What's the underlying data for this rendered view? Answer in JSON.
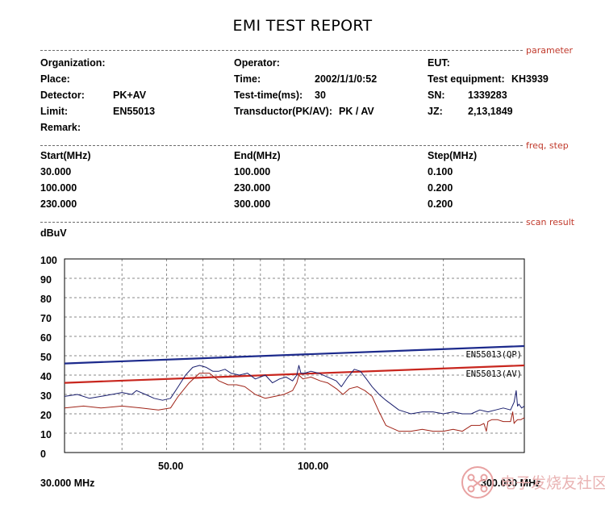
{
  "report": {
    "title": "EMI TEST REPORT"
  },
  "sections": {
    "parameter": "parameter",
    "freq_step": "freq, step",
    "scan_result": "scan result"
  },
  "parameters": {
    "organization_label": "Organization:",
    "organization_value": "",
    "operator_label": "Operator:",
    "operator_value": "",
    "eut_label": "EUT:",
    "eut_value": "",
    "place_label": "Place:",
    "place_value": "",
    "time_label": "Time:",
    "time_value": "2002/1/1/0:52",
    "equipment_label": "Test equipment:",
    "equipment_value": "KH3939",
    "detector_label": "Detector:",
    "detector_value": "PK+AV",
    "testtime_label": "Test-time(ms):",
    "testtime_value": "30",
    "sn_label": "SN:",
    "sn_value": "1339283",
    "limit_label": "Limit:",
    "limit_value": "EN55013",
    "transductor_label": "Transductor(PK/AV):",
    "transductor_value": "PK  /  AV",
    "jz_label": "JZ:",
    "jz_value": "2,13,1849",
    "remark_label": "Remark:",
    "remark_value": ""
  },
  "freq_table": {
    "headers": [
      "Start(MHz)",
      "End(MHz)",
      "Step(MHz)"
    ],
    "rows": [
      [
        "30.000",
        "100.000",
        "0.100"
      ],
      [
        "100.000",
        "230.000",
        "0.200"
      ],
      [
        "230.000",
        "300.000",
        "0.200"
      ]
    ]
  },
  "watermark": {
    "text": "电子发烧友社区"
  },
  "chart_data": {
    "type": "line",
    "ylabel": "dBuV",
    "ylim": [
      0,
      100
    ],
    "yticks": [
      "100",
      "90",
      "80",
      "70",
      "60",
      "50",
      "40",
      "30",
      "20",
      "10",
      "0"
    ],
    "xscale": "log",
    "xlim": [
      30,
      300
    ],
    "xtick_labels": [
      "50.00",
      "100.00"
    ],
    "x_start_label": "30.000 MHz",
    "x_end_label": "300.000 MHz",
    "grid": true,
    "colors": {
      "qp": "#1c2a8c",
      "av": "#c8261e",
      "measured_pk": "#1a1f6e",
      "measured_av": "#a02418"
    },
    "limit_lines": [
      {
        "name": "EN55013(QP)",
        "x": [
          30,
          300
        ],
        "y": [
          46,
          55
        ],
        "color": "#1c2a8c"
      },
      {
        "name": "EN55013(AV)",
        "x": [
          30,
          300
        ],
        "y": [
          36,
          45
        ],
        "color": "#c8261e"
      }
    ],
    "series": [
      {
        "color": "#1a1f6e",
        "x": [
          30,
          32,
          34,
          36,
          38,
          40,
          42,
          43,
          45,
          47,
          49,
          51,
          53,
          55,
          57,
          59,
          61,
          63,
          65,
          67,
          69,
          72,
          75,
          78,
          80,
          82,
          85,
          88,
          91,
          94,
          96,
          97,
          98,
          100,
          103,
          107,
          112,
          117,
          120,
          124,
          128,
          132,
          136,
          140,
          145,
          150,
          160,
          170,
          180,
          190,
          200,
          210,
          220,
          230,
          240,
          250,
          260,
          270,
          280,
          285,
          288,
          290,
          292,
          296,
          300
        ],
        "y": [
          29,
          30,
          28,
          29,
          30,
          31,
          30,
          32,
          30,
          28,
          27,
          28,
          34,
          40,
          44,
          45,
          44,
          42,
          42,
          43,
          41,
          40,
          41,
          38,
          39,
          40,
          36,
          38,
          39,
          37,
          40,
          45,
          41,
          41,
          42,
          41,
          39,
          37,
          34,
          39,
          43,
          42,
          38,
          34,
          30,
          27,
          22,
          20,
          21,
          21,
          20,
          21,
          20,
          20,
          22,
          21,
          22,
          23,
          22,
          26,
          32,
          24,
          25,
          23,
          24
        ]
      },
      {
        "color": "#a02418",
        "x": [
          30,
          33,
          36,
          40,
          44,
          48,
          51,
          53,
          56,
          59,
          62,
          65,
          68,
          71,
          74,
          78,
          82,
          86,
          90,
          94,
          96,
          97,
          99,
          103,
          108,
          112,
          117,
          121,
          125,
          130,
          135,
          140,
          145,
          150,
          160,
          170,
          180,
          190,
          200,
          210,
          220,
          230,
          240,
          245,
          248,
          250,
          255,
          262,
          270,
          280,
          283,
          285,
          287,
          290,
          295,
          300
        ],
        "y": [
          23,
          24,
          23,
          24,
          23,
          22,
          23,
          29,
          36,
          41,
          41,
          37,
          35,
          35,
          34,
          30,
          28,
          29,
          30,
          32,
          36,
          40,
          38,
          39,
          37,
          36,
          33,
          30,
          33,
          34,
          32,
          29,
          21,
          14,
          11,
          11,
          12,
          11,
          11,
          12,
          11,
          14,
          14,
          15,
          11,
          16,
          17,
          17,
          16,
          16,
          21,
          15,
          16,
          17,
          17,
          18
        ]
      }
    ]
  }
}
